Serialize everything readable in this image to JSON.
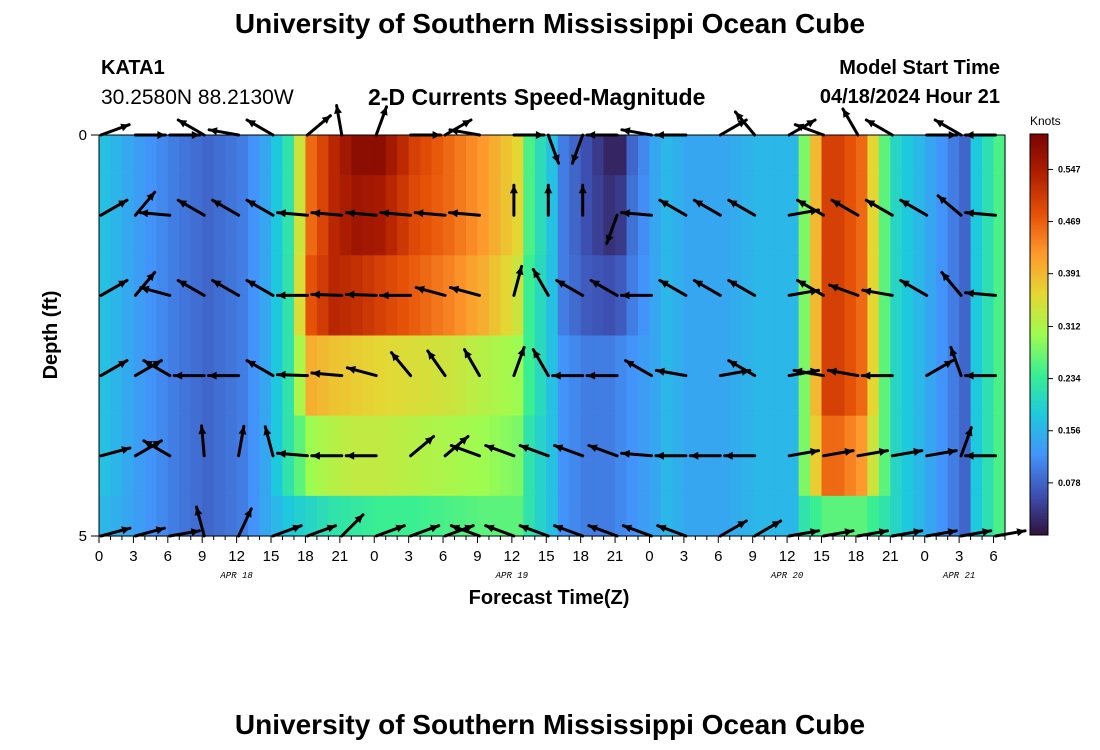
{
  "header": {
    "title": "University of Southern Mississippi Ocean Cube",
    "station_id": "KATA1",
    "station_location": "30.2580N  88.2130W",
    "chart_title": "2-D Currents Speed-Magnitude",
    "model_start_label": "Model Start Time",
    "model_start_value": "04/18/2024 Hour 21"
  },
  "footer": {
    "title": "University of Southern Mississippi Ocean Cube"
  },
  "colors": {
    "palette": [
      "#30123b",
      "#3e4fb2",
      "#4394fa",
      "#1fc9dd",
      "#3aee92",
      "#9efc50",
      "#e4d734",
      "#fe9a2d",
      "#e65108",
      "#b01f01",
      "#7a0403"
    ]
  },
  "chart_data": {
    "type": "heatmap",
    "title": "2-D Currents Speed-Magnitude",
    "xlabel": "Forecast Time(Z)",
    "ylabel": "Depth (ft)",
    "y_ticks": [
      "0",
      "5"
    ],
    "ylim": [
      0,
      5
    ],
    "x_ticks": [
      "0",
      "3",
      "6",
      "9",
      "12",
      "15",
      "18",
      "21",
      "0",
      "3",
      "6",
      "9",
      "12",
      "15",
      "18",
      "21",
      "0",
      "3",
      "6",
      "9",
      "12",
      "15",
      "18",
      "21",
      "0",
      "3",
      "6"
    ],
    "date_labels": [
      {
        "label": "APR 18",
        "hour_index": 12
      },
      {
        "label": "APR 19",
        "hour_index": 36
      },
      {
        "label": "APR 20",
        "hour_index": 60
      },
      {
        "label": "APR 21",
        "hour_index": 75
      }
    ],
    "colorbar": {
      "unit": "Knots",
      "range": [
        0.0,
        0.6
      ],
      "tick_values": [
        "0.078",
        "0.156",
        "0.234",
        "0.312",
        "0.391",
        "0.469",
        "0.547"
      ]
    },
    "hours": 79,
    "depth_layers": [
      "surface",
      "layer-1",
      "layer-2",
      "layer-3",
      "layer-4",
      "bottom"
    ],
    "time_key_hours": [
      0,
      3,
      6,
      9,
      12,
      14,
      16,
      18,
      20,
      22,
      24,
      27,
      30,
      33,
      36,
      37,
      39,
      40,
      42,
      44,
      45,
      46,
      48,
      49,
      51,
      52,
      54,
      57,
      60,
      61,
      63,
      64,
      66,
      68,
      69,
      72,
      73,
      75,
      76,
      78
    ],
    "speed_knots": [
      [
        0.17,
        0.13,
        0.1,
        0.08,
        0.1,
        0.14,
        0.22,
        0.46,
        0.53,
        0.58,
        0.58,
        0.5,
        0.46,
        0.42,
        0.36,
        0.25,
        0.17,
        0.1,
        0.06,
        0.02,
        0.02,
        0.08,
        0.14,
        0.16,
        0.14,
        0.14,
        0.14,
        0.16,
        0.16,
        0.28,
        0.5,
        0.5,
        0.46,
        0.26,
        0.2,
        0.14,
        0.12,
        0.08,
        0.18,
        0.25
      ],
      [
        0.17,
        0.13,
        0.1,
        0.08,
        0.1,
        0.14,
        0.22,
        0.46,
        0.53,
        0.56,
        0.55,
        0.49,
        0.46,
        0.42,
        0.36,
        0.25,
        0.17,
        0.1,
        0.06,
        0.03,
        0.04,
        0.09,
        0.14,
        0.16,
        0.14,
        0.14,
        0.14,
        0.16,
        0.16,
        0.28,
        0.5,
        0.5,
        0.46,
        0.26,
        0.2,
        0.14,
        0.12,
        0.08,
        0.18,
        0.25
      ],
      [
        0.17,
        0.13,
        0.1,
        0.08,
        0.1,
        0.14,
        0.22,
        0.48,
        0.53,
        0.52,
        0.5,
        0.47,
        0.44,
        0.4,
        0.34,
        0.24,
        0.17,
        0.1,
        0.07,
        0.06,
        0.07,
        0.1,
        0.14,
        0.16,
        0.14,
        0.14,
        0.14,
        0.16,
        0.16,
        0.28,
        0.5,
        0.5,
        0.46,
        0.26,
        0.2,
        0.14,
        0.12,
        0.08,
        0.18,
        0.25
      ],
      [
        0.17,
        0.13,
        0.1,
        0.08,
        0.1,
        0.14,
        0.22,
        0.4,
        0.38,
        0.37,
        0.36,
        0.35,
        0.34,
        0.32,
        0.3,
        0.24,
        0.17,
        0.12,
        0.1,
        0.1,
        0.11,
        0.12,
        0.14,
        0.16,
        0.14,
        0.14,
        0.14,
        0.16,
        0.16,
        0.28,
        0.5,
        0.5,
        0.46,
        0.26,
        0.2,
        0.14,
        0.12,
        0.08,
        0.18,
        0.25
      ],
      [
        0.17,
        0.13,
        0.1,
        0.08,
        0.1,
        0.14,
        0.22,
        0.3,
        0.32,
        0.33,
        0.33,
        0.32,
        0.31,
        0.3,
        0.28,
        0.22,
        0.17,
        0.12,
        0.1,
        0.1,
        0.11,
        0.12,
        0.14,
        0.16,
        0.14,
        0.14,
        0.14,
        0.16,
        0.16,
        0.28,
        0.46,
        0.46,
        0.42,
        0.26,
        0.2,
        0.14,
        0.12,
        0.08,
        0.18,
        0.25
      ],
      [
        0.16,
        0.13,
        0.1,
        0.08,
        0.1,
        0.14,
        0.18,
        0.2,
        0.22,
        0.23,
        0.24,
        0.24,
        0.25,
        0.26,
        0.26,
        0.22,
        0.17,
        0.12,
        0.1,
        0.1,
        0.11,
        0.12,
        0.14,
        0.16,
        0.14,
        0.14,
        0.14,
        0.16,
        0.16,
        0.22,
        0.26,
        0.26,
        0.26,
        0.22,
        0.2,
        0.14,
        0.12,
        0.08,
        0.18,
        0.25
      ]
    ],
    "vector_hours": [
      0,
      3,
      6,
      9,
      12,
      15,
      18,
      21,
      24,
      27,
      30,
      33,
      36,
      39,
      42,
      45,
      48,
      51,
      54,
      57,
      60,
      63,
      66,
      69,
      72,
      75,
      78
    ],
    "vector_direction_deg": [
      [
        70,
        90,
        90,
        300,
        280,
        300,
        50,
        350,
        20,
        90,
        60,
        280,
        90,
        160,
        200,
        270,
        280,
        270,
        60,
        320,
        60,
        290,
        330,
        300,
        90,
        300,
        270
      ],
      [
        60,
        40,
        275,
        300,
        300,
        300,
        275,
        275,
        275,
        275,
        275,
        275,
        0,
        0,
        0,
        200,
        275,
        300,
        300,
        300,
        80,
        300,
        300,
        300,
        300,
        310,
        275
      ],
      [
        60,
        40,
        285,
        300,
        300,
        300,
        270,
        272,
        272,
        270,
        285,
        285,
        15,
        330,
        300,
        300,
        270,
        300,
        300,
        300,
        80,
        300,
        290,
        280,
        300,
        320,
        275
      ],
      [
        60,
        60,
        300,
        270,
        270,
        300,
        272,
        275,
        285,
        320,
        325,
        330,
        20,
        330,
        270,
        270,
        300,
        280,
        80,
        300,
        80,
        280,
        280,
        270,
        60,
        340,
        270
      ],
      [
        75,
        60,
        300,
        355,
        10,
        345,
        275,
        270,
        270,
        50,
        50,
        290,
        290,
        290,
        290,
        290,
        275,
        270,
        270,
        270,
        80,
        80,
        80,
        80,
        80,
        20,
        270
      ],
      [
        75,
        75,
        80,
        345,
        25,
        70,
        70,
        45,
        70,
        70,
        70,
        290,
        290,
        290,
        290,
        290,
        290,
        290,
        60,
        60,
        80,
        80,
        80,
        80,
        80,
        80,
        80
      ]
    ]
  }
}
